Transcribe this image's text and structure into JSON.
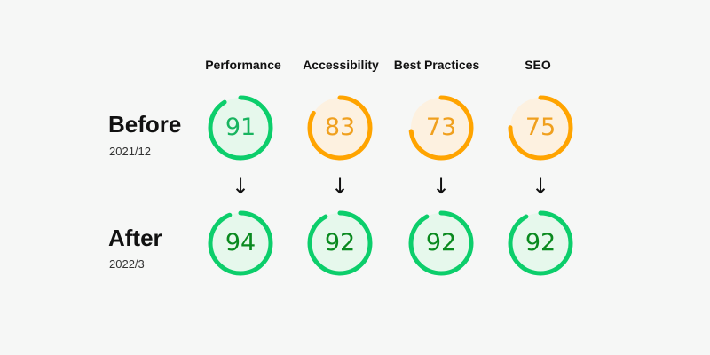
{
  "categories": [
    {
      "label": "Performance"
    },
    {
      "label": "Accessibility"
    },
    {
      "label": "Best Practices"
    },
    {
      "label": "SEO"
    }
  ],
  "rows": [
    {
      "title": "Before",
      "date": "2021/12",
      "scores": [
        91,
        83,
        73,
        75
      ]
    },
    {
      "title": "After",
      "date": "2022/3",
      "scores": [
        94,
        92,
        92,
        92
      ]
    }
  ],
  "arrow_glyph": "↓",
  "colors": {
    "good_ring": "#0cce6b",
    "good_fill": "#e6f8ec",
    "good_text_before": "#18b45f",
    "good_text_after": "#0a8a1f",
    "average_ring": "#ffa400",
    "average_fill": "#fdf1e0",
    "average_text": "#f0a01e"
  }
}
